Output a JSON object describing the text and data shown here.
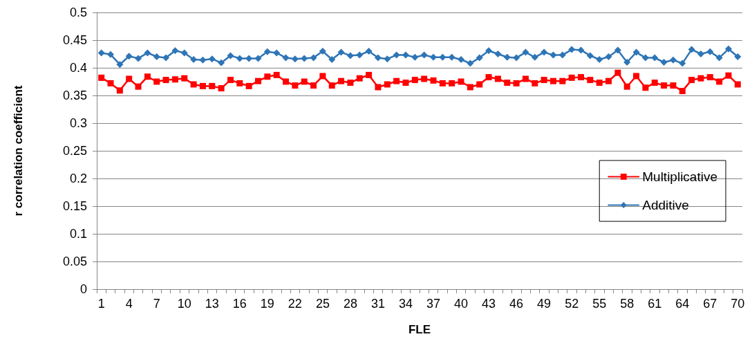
{
  "chart_data": {
    "type": "line",
    "xlabel": "FLE",
    "ylabel": "r correlation coefficient",
    "categories": [
      "1",
      null,
      null,
      "4",
      null,
      null,
      "7",
      null,
      null,
      "10",
      null,
      null,
      "13",
      null,
      null,
      "16",
      null,
      null,
      "19",
      null,
      null,
      "22",
      null,
      null,
      "25",
      null,
      null,
      "28",
      null,
      null,
      "31",
      null,
      null,
      "34",
      null,
      null,
      "37",
      null,
      null,
      "40",
      null,
      null,
      "43",
      null,
      null,
      "46",
      null,
      null,
      "49",
      null,
      null,
      "52",
      null,
      null,
      "55",
      null,
      null,
      "58",
      null,
      null,
      "61",
      null,
      null,
      "64",
      null,
      null,
      "67",
      null,
      null,
      "70"
    ],
    "series": [
      {
        "name": "Multiplicative",
        "color": "#ff0000",
        "marker": "square",
        "values": [
          0.382,
          0.372,
          0.359,
          0.38,
          0.366,
          0.384,
          0.375,
          0.378,
          0.379,
          0.381,
          0.37,
          0.367,
          0.367,
          0.363,
          0.378,
          0.372,
          0.367,
          0.376,
          0.384,
          0.387,
          0.375,
          0.368,
          0.375,
          0.368,
          0.385,
          0.368,
          0.376,
          0.373,
          0.381,
          0.387,
          0.365,
          0.37,
          0.376,
          0.373,
          0.378,
          0.38,
          0.377,
          0.372,
          0.372,
          0.375,
          0.365,
          0.37,
          0.383,
          0.38,
          0.373,
          0.372,
          0.38,
          0.372,
          0.378,
          0.376,
          0.376,
          0.382,
          0.383,
          0.378,
          0.373,
          0.376,
          0.391,
          0.366,
          0.385,
          0.364,
          0.373,
          0.368,
          0.368,
          0.358,
          0.378,
          0.381,
          0.383,
          0.375,
          0.386,
          0.37
        ]
      },
      {
        "name": "Additive",
        "color": "#2e75b6",
        "marker": "diamond",
        "values": [
          0.427,
          0.424,
          0.406,
          0.421,
          0.417,
          0.427,
          0.42,
          0.418,
          0.431,
          0.427,
          0.415,
          0.414,
          0.416,
          0.409,
          0.422,
          0.417,
          0.417,
          0.417,
          0.429,
          0.427,
          0.418,
          0.416,
          0.417,
          0.418,
          0.43,
          0.415,
          0.428,
          0.422,
          0.423,
          0.43,
          0.418,
          0.416,
          0.423,
          0.423,
          0.419,
          0.423,
          0.419,
          0.419,
          0.419,
          0.415,
          0.408,
          0.418,
          0.431,
          0.425,
          0.419,
          0.418,
          0.428,
          0.419,
          0.428,
          0.423,
          0.423,
          0.433,
          0.432,
          0.422,
          0.415,
          0.42,
          0.432,
          0.41,
          0.428,
          0.418,
          0.418,
          0.41,
          0.414,
          0.408,
          0.433,
          0.425,
          0.429,
          0.418,
          0.434,
          0.42
        ]
      }
    ],
    "ylim": [
      0,
      0.5
    ],
    "yticks": [
      0,
      0.05,
      0.1,
      0.15,
      0.2,
      0.25,
      0.3,
      0.35,
      0.4,
      0.45,
      0.5
    ],
    "grid": "y",
    "legend": "right",
    "line_style": "solid"
  }
}
